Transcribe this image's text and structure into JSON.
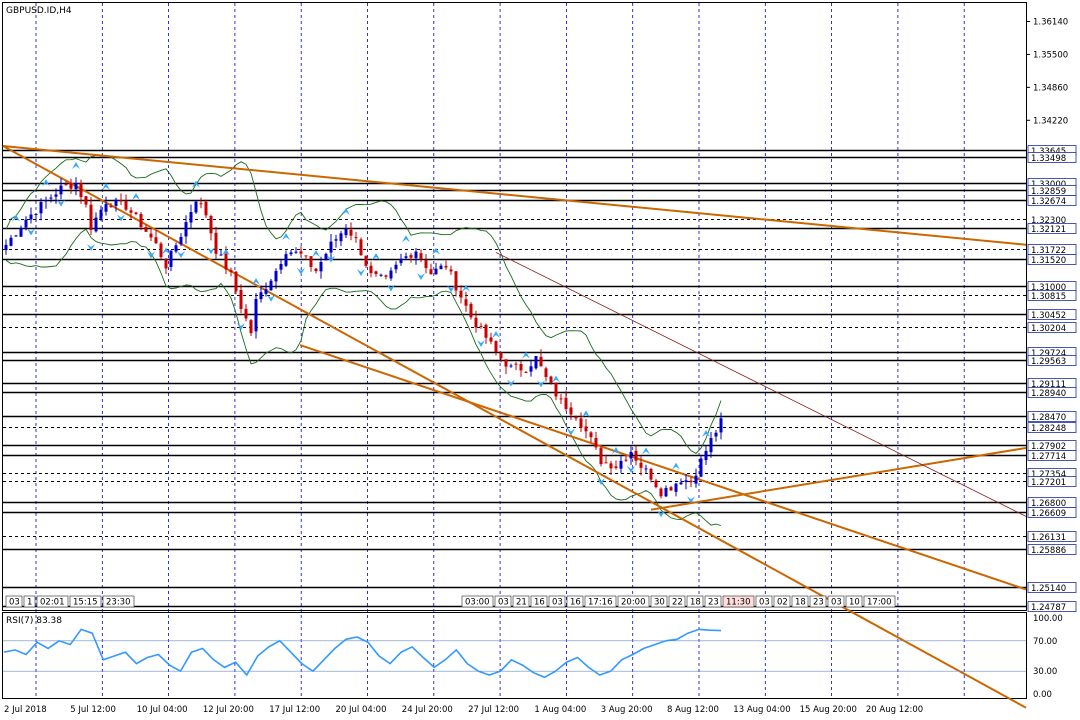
{
  "title": "GBPUSD.ID,H4",
  "colors": {
    "bull": "#0000cc",
    "bear": "#cc0000",
    "trend": "#cc6600",
    "grid": "#0000cc",
    "rsi_line": "#3399ff",
    "band": "#1a6b1a",
    "level_line": "#000000",
    "level_highlight": "#1a2ea8"
  },
  "price_axis": {
    "labels": [
      "1.36140",
      "1.35500",
      "1.34860",
      "1.34220"
    ]
  },
  "levels": [
    {
      "label": "1.33645",
      "price": 1.33645,
      "style": "solid",
      "highlight": true
    },
    {
      "label": "1.33498",
      "price": 1.33498,
      "style": "solid",
      "highlight": true
    },
    {
      "label": "1.33000",
      "price": 1.33,
      "style": "solid",
      "highlight": true
    },
    {
      "label": "1.32859",
      "price": 1.32859,
      "style": "solid",
      "highlight": true
    },
    {
      "label": "1.32674",
      "price": 1.32674,
      "style": "solid",
      "highlight": true
    },
    {
      "label": "1.32300",
      "price": 1.323,
      "style": "dash",
      "highlight": false
    },
    {
      "label": "1.32121",
      "price": 1.32121,
      "style": "solid",
      "highlight": true
    },
    {
      "label": "1.31722",
      "price": 1.31722,
      "style": "dash",
      "highlight": true
    },
    {
      "label": "1.31520",
      "price": 1.3152,
      "style": "solid",
      "highlight": true
    },
    {
      "label": "1.31000",
      "price": 1.31,
      "style": "solid",
      "highlight": true
    },
    {
      "label": "1.30815",
      "price": 1.30815,
      "style": "dash",
      "highlight": true
    },
    {
      "label": "1.30452",
      "price": 1.30452,
      "style": "solid",
      "highlight": true
    },
    {
      "label": "1.30204",
      "price": 1.30204,
      "style": "dash",
      "highlight": true
    },
    {
      "label": "1.29724",
      "price": 1.29724,
      "style": "solid",
      "highlight": true
    },
    {
      "label": "1.29563",
      "price": 1.29563,
      "style": "solid",
      "highlight": true
    },
    {
      "label": "1.29111",
      "price": 1.29111,
      "style": "solid",
      "highlight": true
    },
    {
      "label": "1.28940",
      "price": 1.2894,
      "style": "solid",
      "highlight": true
    },
    {
      "label": "1.28470",
      "price": 1.2847,
      "style": "solid",
      "highlight": true
    },
    {
      "label": "1.28248",
      "price": 1.28248,
      "style": "dash",
      "highlight": true
    },
    {
      "label": "1.27902",
      "price": 1.27902,
      "style": "solid",
      "highlight": true
    },
    {
      "label": "1.27714",
      "price": 1.27714,
      "style": "solid",
      "highlight": true
    },
    {
      "label": "1.27354",
      "price": 1.27354,
      "style": "dash",
      "highlight": true
    },
    {
      "label": "1.27201",
      "price": 1.27201,
      "style": "dash",
      "highlight": true
    },
    {
      "label": "1.26800",
      "price": 1.268,
      "style": "solid",
      "highlight": true
    },
    {
      "label": "1.26609",
      "price": 1.26609,
      "style": "solid",
      "highlight": true
    },
    {
      "label": "1.26131",
      "price": 1.26131,
      "style": "dash",
      "highlight": true
    },
    {
      "label": "1.25886",
      "price": 1.25886,
      "style": "solid",
      "highlight": true
    },
    {
      "label": "1.25140",
      "price": 1.2514,
      "style": "solid",
      "highlight": true
    },
    {
      "label": "1.24787",
      "price": 1.24787,
      "style": "solid",
      "highlight": true
    }
  ],
  "time_axis": {
    "labels": [
      "2 Jul 2018",
      "5 Jul 12:00",
      "10 Jul 04:00",
      "12 Jul 20:00",
      "17 Jul 12:00",
      "20 Jul 04:00",
      "24 Jul 20:00",
      "27 Jul 12:00",
      "1 Aug 04:00",
      "3 Aug 20:00",
      "8 Aug 12:00",
      "13 Aug 04:00",
      "15 Aug 20:00",
      "20 Aug 12:00"
    ]
  },
  "session_boxes": {
    "left": [
      "03",
      "1",
      "02:01",
      "15:15",
      "23:30"
    ],
    "right": [
      "03:00",
      "03",
      "21",
      "16",
      "03",
      "16",
      "17:16",
      "20:00",
      "30",
      "22",
      "18",
      "23",
      "11:30",
      "03",
      "02",
      "18",
      "23",
      "03",
      "10",
      "17:00"
    ]
  },
  "rsi": {
    "label": "RSI(7) 83.38",
    "levels": [
      "100.00",
      "70.00",
      "30.00",
      "0.00"
    ]
  },
  "chart_data": {
    "type": "candlestick",
    "title": "GBPUSD.ID,H4",
    "timeframe": "H4",
    "y_range": [
      1.247,
      1.365
    ],
    "x_tick_labels": [
      "2 Jul 2018",
      "5 Jul 12:00",
      "10 Jul 04:00",
      "12 Jul 20:00",
      "17 Jul 12:00",
      "20 Jul 04:00",
      "24 Jul 20:00",
      "27 Jul 12:00",
      "1 Aug 04:00",
      "3 Aug 20:00",
      "8 Aug 12:00",
      "13 Aug 04:00",
      "15 Aug 20:00",
      "20 Aug 12:00"
    ],
    "close_path": [
      [
        0,
        1.318
      ],
      [
        4,
        1.323
      ],
      [
        8,
        1.3265
      ],
      [
        11,
        1.329
      ],
      [
        14,
        1.33
      ],
      [
        16,
        1.3255
      ],
      [
        17,
        1.3215
      ],
      [
        20,
        1.3265
      ],
      [
        24,
        1.3255
      ],
      [
        27,
        1.322
      ],
      [
        30,
        1.318
      ],
      [
        32,
        1.314
      ],
      [
        35,
        1.32
      ],
      [
        38,
        1.327
      ],
      [
        40,
        1.324
      ],
      [
        42,
        1.317
      ],
      [
        45,
        1.312
      ],
      [
        47,
        1.306
      ],
      [
        49,
        1.301
      ],
      [
        50,
        1.307
      ],
      [
        52,
        1.31
      ],
      [
        54,
        1.313
      ],
      [
        56,
        1.317
      ],
      [
        59,
        1.316
      ],
      [
        62,
        1.313
      ],
      [
        65,
        1.318
      ],
      [
        68,
        1.3215
      ],
      [
        70,
        1.319
      ],
      [
        73,
        1.312
      ],
      [
        76,
        1.311
      ],
      [
        79,
        1.315
      ],
      [
        82,
        1.317
      ],
      [
        85,
        1.3125
      ],
      [
        88,
        1.314
      ],
      [
        90,
        1.31
      ],
      [
        93,
        1.304
      ],
      [
        96,
        1.3
      ],
      [
        98,
        1.297
      ],
      [
        101,
        1.294
      ],
      [
        104,
        1.294
      ],
      [
        106,
        1.296
      ],
      [
        108,
        1.292
      ],
      [
        111,
        1.2875
      ],
      [
        114,
        1.285
      ],
      [
        117,
        1.28
      ],
      [
        119,
        1.276
      ],
      [
        122,
        1.275
      ],
      [
        125,
        1.278
      ],
      [
        127,
        1.275
      ],
      [
        129,
        1.273
      ],
      [
        131,
        1.27
      ],
      [
        133,
        1.271
      ],
      [
        135,
        1.2725
      ],
      [
        137,
        1.272
      ],
      [
        139,
        1.276
      ],
      [
        141,
        1.28
      ],
      [
        143,
        1.2835
      ]
    ],
    "upper_channel": {
      "from": [
        0,
        1.3372
      ],
      "to": [
        170,
        1.318
      ]
    },
    "lower_channel": {
      "from": [
        0,
        1.342
      ],
      "to": [
        170,
        1.251
      ]
    },
    "rsi_value": 83.38,
    "rsi_period": 7,
    "rsi_series": [
      55,
      58,
      52,
      68,
      60,
      70,
      65,
      85,
      80,
      45,
      50,
      55,
      40,
      48,
      52,
      38,
      30,
      55,
      60,
      45,
      35,
      42,
      25,
      50,
      62,
      70,
      55,
      40,
      30,
      45,
      60,
      72,
      75,
      68,
      50,
      40,
      55,
      62,
      48,
      35,
      45,
      58,
      40,
      30,
      25,
      30,
      45,
      38,
      28,
      22,
      30,
      42,
      48,
      35,
      25,
      30,
      45,
      52,
      60,
      65,
      70,
      72,
      80,
      85,
      84,
      83.38
    ]
  }
}
